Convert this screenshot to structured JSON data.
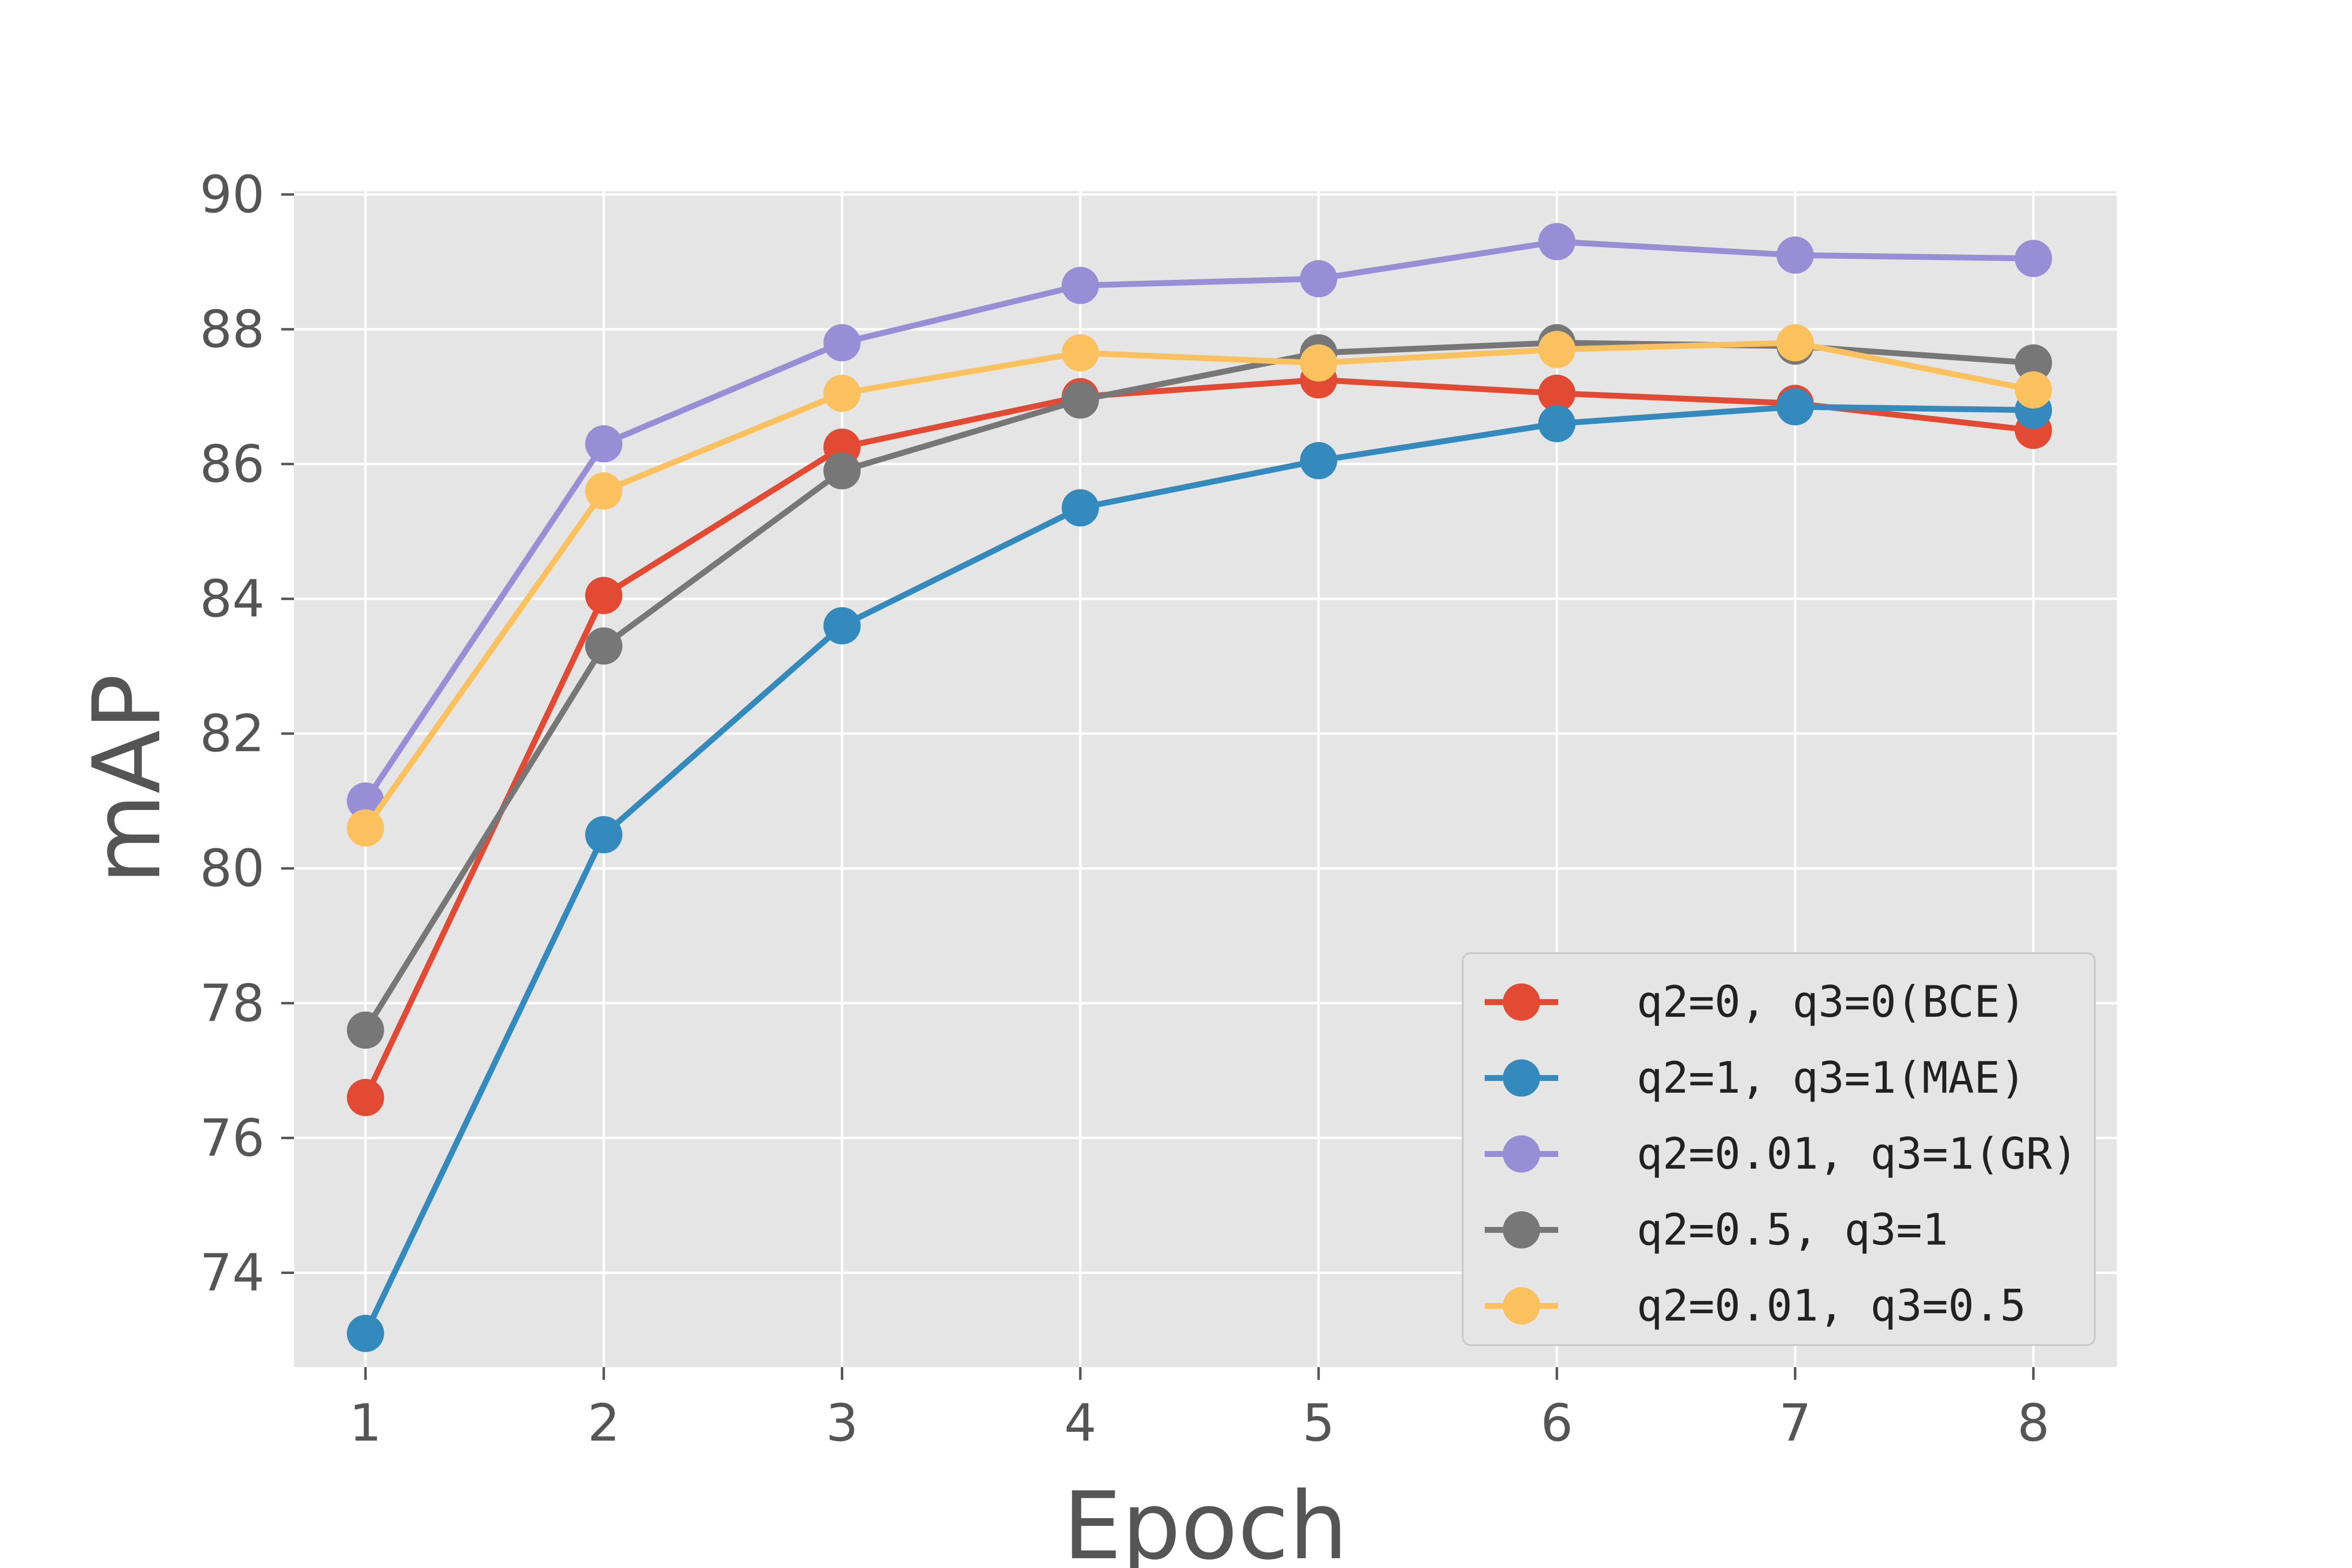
{
  "chart_data": {
    "type": "line",
    "title": "",
    "xlabel": "Epoch",
    "ylabel": "mAP",
    "x": [
      1,
      2,
      3,
      4,
      5,
      6,
      7,
      8
    ],
    "xticks": [
      "1",
      "2",
      "3",
      "4",
      "5",
      "6",
      "7",
      "8"
    ],
    "yticks": [
      "74",
      "76",
      "78",
      "80",
      "82",
      "84",
      "86",
      "88",
      "90"
    ],
    "xlim": [
      0.7,
      8.35
    ],
    "ylim": [
      72.6,
      90.05
    ],
    "grid": true,
    "legend_position": "lower-right",
    "series": [
      {
        "name": "q2=0, q3=0(BCE)",
        "color": "#E24A33",
        "values": [
          76.6,
          84.05,
          86.25,
          87.0,
          87.25,
          87.05,
          86.9,
          86.5
        ]
      },
      {
        "name": "q2=1, q3=1(MAE)",
        "color": "#348ABD",
        "values": [
          73.1,
          80.5,
          83.6,
          85.35,
          86.05,
          86.6,
          86.85,
          86.8
        ]
      },
      {
        "name": "q2=0.01, q3=1(GR)",
        "color": "#988ED5",
        "values": [
          81.0,
          86.3,
          87.8,
          88.65,
          88.75,
          89.3,
          89.1,
          89.05
        ]
      },
      {
        "name": "q2=0.5, q3=1",
        "color": "#777777",
        "values": [
          77.6,
          83.3,
          85.9,
          86.95,
          87.65,
          87.8,
          87.75,
          87.5
        ]
      },
      {
        "name": "q2=0.01, q3=0.5",
        "color": "#FBC15E",
        "values": [
          80.6,
          85.6,
          87.05,
          87.65,
          87.5,
          87.7,
          87.8,
          87.1
        ]
      }
    ]
  }
}
